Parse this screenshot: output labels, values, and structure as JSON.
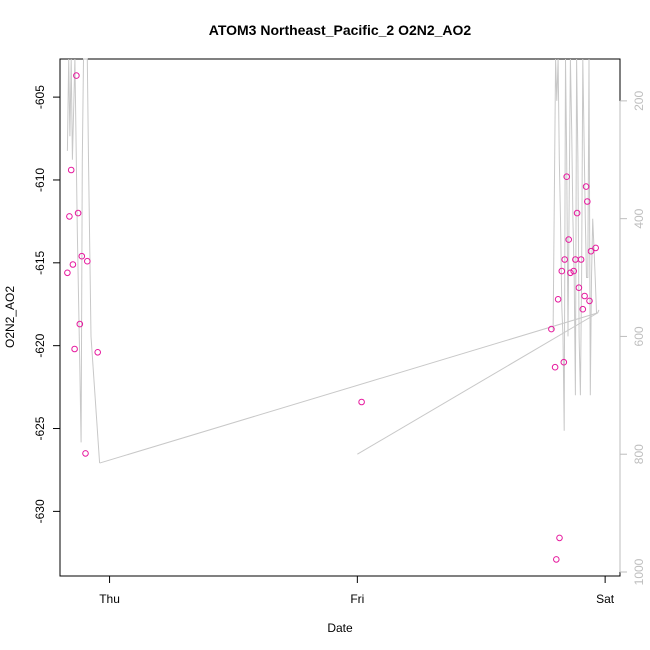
{
  "chart_data": {
    "type": "scatter",
    "title": "ATOM3 Northeast_Pacific_2 O2N2_AO2",
    "xlabel": "Date",
    "ylabel": "O2N2_AO2",
    "x_ticks": [
      {
        "label": "Thu",
        "value": 0
      },
      {
        "label": "Fri",
        "value": 1
      },
      {
        "label": "Sat",
        "value": 2
      }
    ],
    "xlim": [
      -0.2,
      2.06
    ],
    "ylim": [
      -633.9,
      -602.7
    ],
    "y_ticks": [
      -630,
      -625,
      -620,
      -615,
      -610,
      -605
    ],
    "y2_ticks": [
      200,
      400,
      600,
      800,
      1000
    ],
    "y2lim": [
      1006.8,
      128.9
    ],
    "grid": false,
    "points_color": "#e6199e",
    "line_color": "#c8c8c8",
    "axis_right_color": "#bebebe",
    "points": [
      [
        -0.17,
        -615.6
      ],
      [
        -0.162,
        -612.2
      ],
      [
        -0.155,
        -609.4
      ],
      [
        -0.148,
        -615.1
      ],
      [
        -0.141,
        -620.2
      ],
      [
        -0.134,
        -603.7
      ],
      [
        -0.127,
        -612.0
      ],
      [
        -0.12,
        -618.7
      ],
      [
        -0.112,
        -614.6
      ],
      [
        -0.097,
        -626.5
      ],
      [
        -0.09,
        -614.9
      ],
      [
        -0.048,
        -620.4
      ],
      [
        1.017,
        -623.4
      ],
      [
        1.783,
        -619.0
      ],
      [
        1.798,
        -621.3
      ],
      [
        1.803,
        -632.9
      ],
      [
        1.81,
        -617.2
      ],
      [
        1.816,
        -631.6
      ],
      [
        1.825,
        -615.5
      ],
      [
        1.833,
        -621.0
      ],
      [
        1.837,
        -614.8
      ],
      [
        1.845,
        -609.8
      ],
      [
        1.853,
        -613.6
      ],
      [
        1.86,
        -615.6
      ],
      [
        1.873,
        -615.5
      ],
      [
        1.88,
        -614.8
      ],
      [
        1.887,
        -612.0
      ],
      [
        1.894,
        -616.5
      ],
      [
        1.903,
        -614.8
      ],
      [
        1.91,
        -617.8
      ],
      [
        1.917,
        -617.0
      ],
      [
        1.923,
        -610.4
      ],
      [
        1.928,
        -611.3
      ],
      [
        1.937,
        -617.3
      ],
      [
        1.943,
        -614.3
      ],
      [
        1.962,
        -614.1
      ]
    ],
    "pressure_series": [
      [
        -0.17,
        285
      ],
      [
        -0.165,
        128.9
      ],
      [
        -0.16,
        260
      ],
      [
        -0.155,
        128.9
      ],
      [
        -0.15,
        300
      ],
      [
        -0.14,
        128.9
      ],
      [
        -0.13,
        420
      ],
      [
        -0.12,
        650
      ],
      [
        -0.115,
        780
      ],
      [
        -0.11,
        300
      ],
      [
        -0.105,
        128.9
      ],
      [
        -0.09,
        128.9
      ],
      [
        -0.085,
        300
      ],
      [
        -0.075,
        600
      ],
      [
        -0.04,
        815
      ],
      [
        1.79,
        590
      ],
      [
        1.8,
        128.9
      ],
      [
        1.805,
        200
      ],
      [
        1.81,
        128.9
      ],
      [
        1.815,
        300
      ],
      [
        1.82,
        400
      ],
      [
        1.825,
        550
      ],
      [
        1.83,
        600
      ],
      [
        1.835,
        760
      ],
      [
        1.84,
        128.9
      ],
      [
        1.845,
        300
      ],
      [
        1.85,
        600
      ],
      [
        1.86,
        128.9
      ],
      [
        1.865,
        250
      ],
      [
        1.87,
        400
      ],
      [
        1.875,
        500
      ],
      [
        1.88,
        700
      ],
      [
        1.885,
        128.9
      ],
      [
        1.89,
        300
      ],
      [
        1.895,
        600
      ],
      [
        1.9,
        700
      ],
      [
        1.905,
        500
      ],
      [
        1.91,
        128.9
      ],
      [
        1.92,
        400
      ],
      [
        1.925,
        500
      ],
      [
        1.93,
        500
      ],
      [
        1.935,
        128.9
      ],
      [
        1.94,
        700
      ],
      [
        1.945,
        500
      ],
      [
        1.95,
        400
      ],
      [
        1.955,
        450
      ],
      [
        1.96,
        500
      ],
      [
        1.965,
        560
      ],
      [
        1.97,
        560
      ],
      [
        1.975,
        555
      ],
      [
        1.0,
        800
      ],
      [
        1.73,
        600
      ]
    ]
  }
}
